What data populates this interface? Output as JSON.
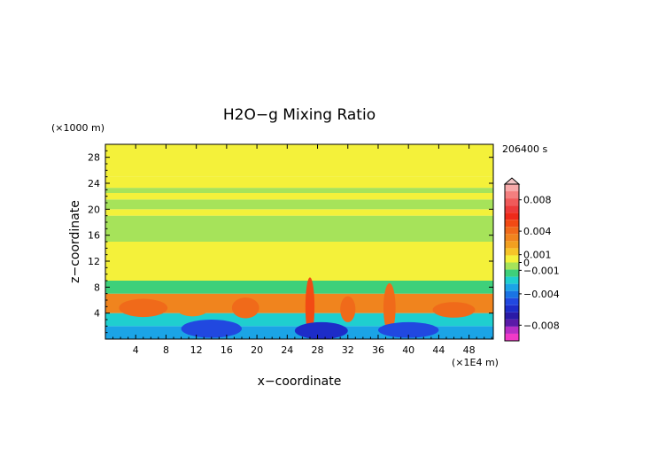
{
  "chart_data": {
    "type": "heatmap",
    "title": "H2O−g Mixing Ratio",
    "xlabel": "x−coordinate",
    "ylabel": "z−coordinate",
    "x_unit": "(×1E4 m)",
    "y_unit": "(×1000 m)",
    "time_label": "206400 s",
    "xlim": [
      0,
      51.2
    ],
    "ylim": [
      0,
      30
    ],
    "x_ticks": [
      4,
      8,
      12,
      16,
      20,
      24,
      28,
      32,
      36,
      40,
      44,
      48
    ],
    "y_ticks": [
      4,
      8,
      12,
      16,
      20,
      24,
      28
    ],
    "colorbar": {
      "range": [
        -0.01,
        0.01
      ],
      "labels": [
        "0.008",
        "0.004",
        "0.001",
        "0",
        "−0.001",
        "−0.004",
        "−0.008"
      ],
      "label_values": [
        0.008,
        0.004,
        0.001,
        0,
        -0.001,
        -0.004,
        -0.008
      ],
      "colors": [
        {
          "v": 0.0095,
          "c": "#f7a9a9"
        },
        {
          "v": 0.0085,
          "c": "#f47f7f"
        },
        {
          "v": 0.0075,
          "c": "#f05a5a"
        },
        {
          "v": 0.0065,
          "c": "#ec3b3b"
        },
        {
          "v": 0.0055,
          "c": "#ee2a1a"
        },
        {
          "v": 0.0045,
          "c": "#f24a14"
        },
        {
          "v": 0.0035,
          "c": "#f06a1a"
        },
        {
          "v": 0.0025,
          "c": "#f0841e"
        },
        {
          "v": 0.0015,
          "c": "#f2a020"
        },
        {
          "v": 0.0008,
          "c": "#f6c428"
        },
        {
          "v": 0.0003,
          "c": "#f4f13a"
        },
        {
          "v": -0.0003,
          "c": "#a6e35a"
        },
        {
          "v": -0.0008,
          "c": "#3ed07a"
        },
        {
          "v": -0.0015,
          "c": "#1fcfcf"
        },
        {
          "v": -0.0025,
          "c": "#1ba4e6"
        },
        {
          "v": -0.0035,
          "c": "#1a74e4"
        },
        {
          "v": -0.0045,
          "c": "#2148e0"
        },
        {
          "v": -0.0055,
          "c": "#1d2cc8"
        },
        {
          "v": -0.0065,
          "c": "#2a1aa6"
        },
        {
          "v": -0.0075,
          "c": "#5a1aa8"
        },
        {
          "v": -0.0085,
          "c": "#b62ec6"
        },
        {
          "v": -0.0095,
          "c": "#f03ac8"
        }
      ]
    },
    "field_bands": [
      {
        "z0": 0,
        "z1": 2,
        "value": -0.003
      },
      {
        "z0": 2,
        "z1": 4,
        "value": -0.0015
      },
      {
        "z0": 4,
        "z1": 7,
        "value": 0.002
      },
      {
        "z0": 7,
        "z1": 9,
        "value": -0.0008
      },
      {
        "z0": 9,
        "z1": 15,
        "value": 0.0003
      },
      {
        "z0": 15,
        "z1": 19,
        "value": -0.0003
      },
      {
        "z0": 19,
        "z1": 20,
        "value": 0.0003
      },
      {
        "z0": 20,
        "z1": 21.5,
        "value": -0.0003
      },
      {
        "z0": 21.5,
        "z1": 22.5,
        "value": 0.0003
      },
      {
        "z0": 22.5,
        "z1": 23.3,
        "value": -0.0003
      },
      {
        "z0": 23.3,
        "z1": 25,
        "value": 0.0003
      },
      {
        "z0": 25,
        "z1": 30,
        "value": 0.0003
      }
    ],
    "features": [
      {
        "x": 5,
        "z": 4.8,
        "rx": 3.2,
        "rz": 1.4,
        "value": 0.003
      },
      {
        "x": 11.5,
        "z": 4.5,
        "rx": 2.0,
        "rz": 1.0,
        "value": 0.0025
      },
      {
        "x": 18.5,
        "z": 4.8,
        "rx": 1.8,
        "rz": 1.6,
        "value": 0.003
      },
      {
        "x": 27,
        "z": 5,
        "rx": 0.6,
        "rz": 4.5,
        "value": 0.004
      },
      {
        "x": 32,
        "z": 4.6,
        "rx": 1.0,
        "rz": 2.0,
        "value": 0.003
      },
      {
        "x": 37.5,
        "z": 4.8,
        "rx": 0.8,
        "rz": 3.8,
        "value": 0.003
      },
      {
        "x": 46,
        "z": 4.5,
        "rx": 2.8,
        "rz": 1.2,
        "value": 0.003
      },
      {
        "x": 28.5,
        "z": 1.3,
        "rx": 3.5,
        "rz": 1.3,
        "value": -0.005
      },
      {
        "x": 14,
        "z": 1.6,
        "rx": 4.0,
        "rz": 1.4,
        "value": -0.004
      },
      {
        "x": 40,
        "z": 1.4,
        "rx": 4.0,
        "rz": 1.2,
        "value": -0.004
      }
    ]
  }
}
